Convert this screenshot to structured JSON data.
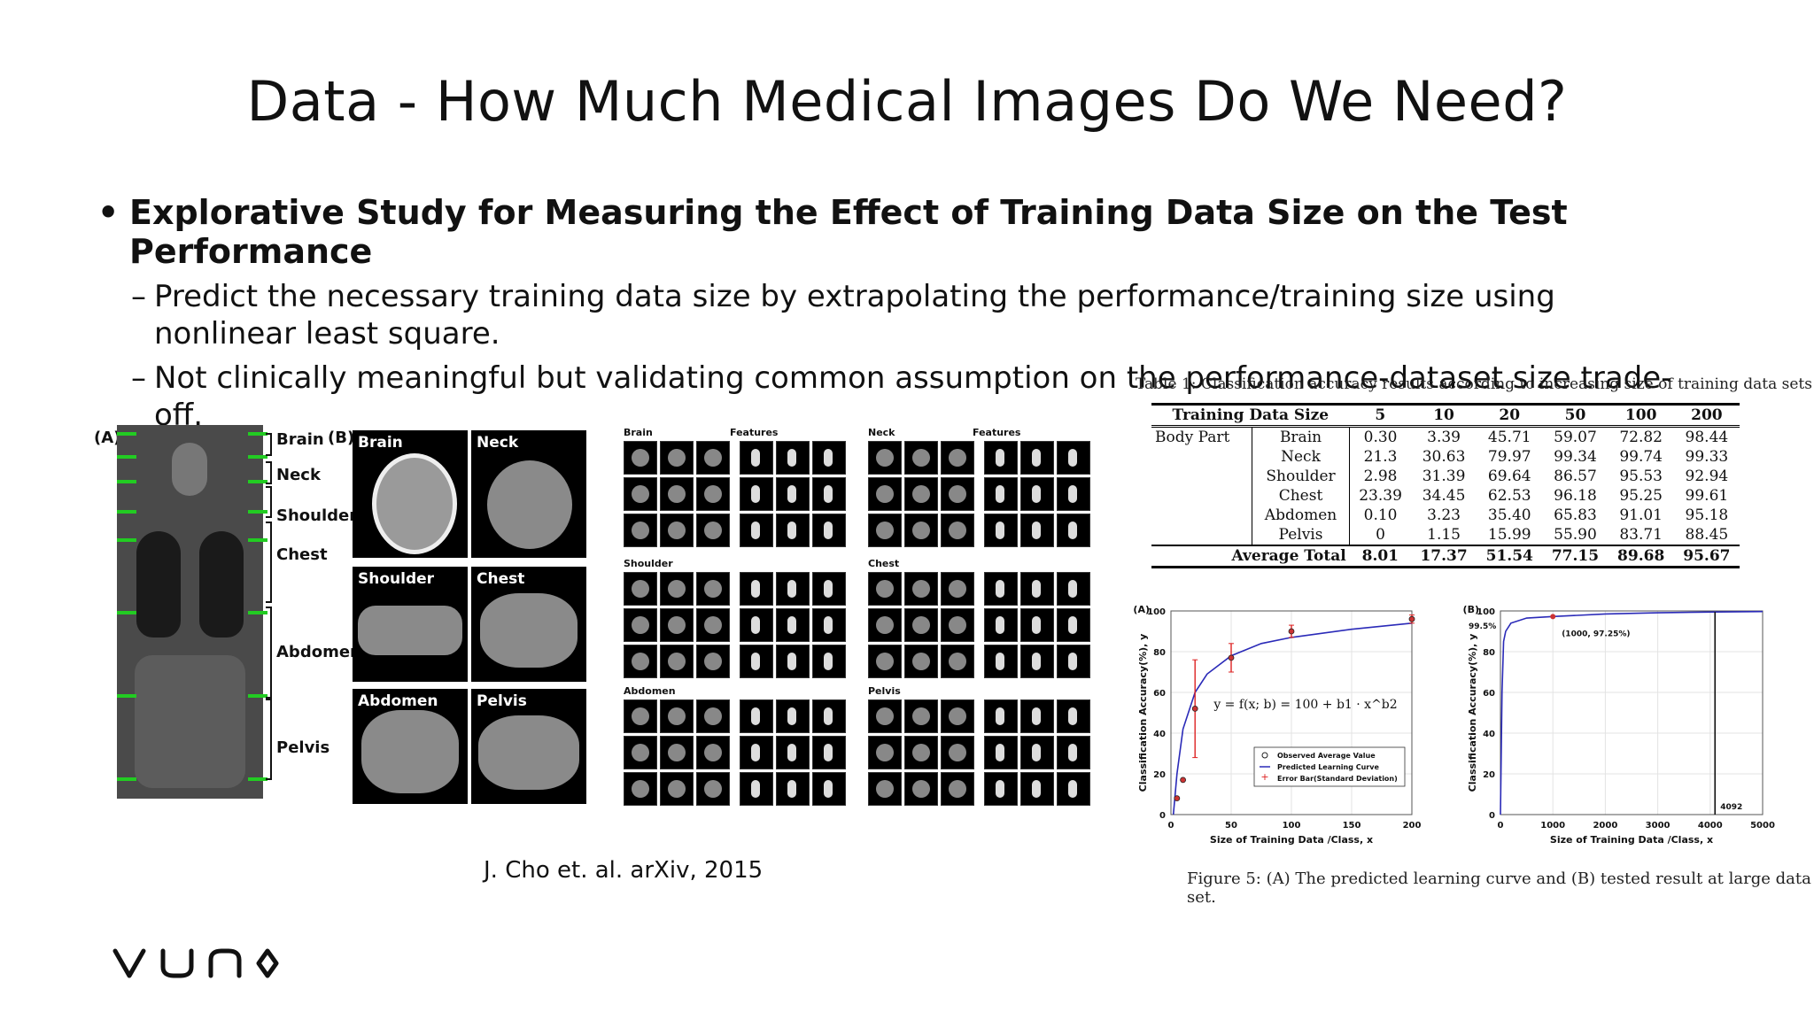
{
  "slide": {
    "title": "Data - How Much Medical Images Do We Need?",
    "bullet": "Explorative Study for Measuring the Effect of Training Data Size on the Test Performance",
    "subbullets": [
      "Predict the necessary training data size by extrapolating the performance/training size using nonlinear least square.",
      "Not clinically meaningful but validating common assumption on the performance-dataset size trade-off."
    ],
    "reference": "J. Cho et. al. arXiv, 2015",
    "logo_text": "vuno"
  },
  "figure_left": {
    "panel_a": "(A)",
    "panel_b": "(B)",
    "region_labels": [
      "Brain",
      "Neck",
      "Shoulder",
      "Chest",
      "Abdomen",
      "Pelvis"
    ],
    "slice_labels": [
      "Brain",
      "Neck",
      "Shoulder",
      "Chest",
      "Abdomen",
      "Pelvis"
    ]
  },
  "figure_features": {
    "groups": [
      {
        "label": "Brain",
        "features": "Features"
      },
      {
        "label": "Neck",
        "features": "Features"
      },
      {
        "label": "Shoulder",
        "features": ""
      },
      {
        "label": "Chest",
        "features": ""
      },
      {
        "label": "Abdomen",
        "features": ""
      },
      {
        "label": "Pelvis",
        "features": ""
      }
    ]
  },
  "table": {
    "caption": "Table 1: Classification accuracy results according to increasing size of training data sets",
    "header": [
      "Training Data Size",
      "5",
      "10",
      "20",
      "50",
      "100",
      "200"
    ],
    "group_label": "Body Part",
    "rows": [
      {
        "part": "Brain",
        "values": [
          "0.30",
          "3.39",
          "45.71",
          "59.07",
          "72.82",
          "98.44"
        ]
      },
      {
        "part": "Neck",
        "values": [
          "21.3",
          "30.63",
          "79.97",
          "99.34",
          "99.74",
          "99.33"
        ]
      },
      {
        "part": "Shoulder",
        "values": [
          "2.98",
          "31.39",
          "69.64",
          "86.57",
          "95.53",
          "92.94"
        ]
      },
      {
        "part": "Chest",
        "values": [
          "23.39",
          "34.45",
          "62.53",
          "96.18",
          "95.25",
          "99.61"
        ]
      },
      {
        "part": "Abdomen",
        "values": [
          "0.10",
          "3.23",
          "35.40",
          "65.83",
          "91.01",
          "95.18"
        ]
      },
      {
        "part": "Pelvis",
        "values": [
          "0",
          "1.15",
          "15.99",
          "55.90",
          "83.71",
          "88.45"
        ]
      }
    ],
    "average": {
      "label": "Average Total",
      "values": [
        "8.01",
        "17.37",
        "51.54",
        "77.15",
        "89.68",
        "95.67"
      ]
    }
  },
  "chart_data": [
    {
      "type": "scatter",
      "panel": "(A)",
      "xlabel": "Size of Training Data /Class, x",
      "ylabel": "Classification Accuracy(%), y",
      "xlim": [
        0,
        200
      ],
      "ylim": [
        0,
        100
      ],
      "xticks": [
        0,
        50,
        100,
        150,
        200
      ],
      "yticks": [
        0,
        20,
        40,
        60,
        80,
        100
      ],
      "equation": "y = f(x; b) = 100 + b1 · x^b2",
      "legend": [
        "Observed Average Value",
        "Predicted Learning Curve",
        "Error Bar(Standard Deviation)"
      ],
      "observed": [
        {
          "x": 5,
          "y": 8
        },
        {
          "x": 10,
          "y": 17
        },
        {
          "x": 20,
          "y": 52
        },
        {
          "x": 50,
          "y": 77
        },
        {
          "x": 100,
          "y": 90
        },
        {
          "x": 200,
          "y": 96
        }
      ],
      "error": [
        {
          "x": 20,
          "lo": 28,
          "hi": 76
        },
        {
          "x": 50,
          "lo": 70,
          "hi": 84
        },
        {
          "x": 100,
          "lo": 87,
          "hi": 93
        },
        {
          "x": 200,
          "lo": 94,
          "hi": 98
        }
      ],
      "curve": [
        {
          "x": 2,
          "y": 0
        },
        {
          "x": 5,
          "y": 20
        },
        {
          "x": 10,
          "y": 42
        },
        {
          "x": 20,
          "y": 60
        },
        {
          "x": 30,
          "y": 69
        },
        {
          "x": 50,
          "y": 78
        },
        {
          "x": 75,
          "y": 84
        },
        {
          "x": 100,
          "y": 87
        },
        {
          "x": 150,
          "y": 91
        },
        {
          "x": 200,
          "y": 94
        }
      ]
    },
    {
      "type": "line",
      "panel": "(B)",
      "xlabel": "Size of Training Data /Class, x",
      "ylabel": "Classification Accuracy(%), y",
      "xlim": [
        0,
        5000
      ],
      "ylim": [
        0,
        100
      ],
      "xticks": [
        0,
        1000,
        2000,
        3000,
        4000,
        5000
      ],
      "yticks": [
        0,
        20,
        40,
        60,
        80,
        100
      ],
      "annotations": [
        "99.5%",
        "(1000, 97.25%)",
        "4092"
      ],
      "curve": [
        {
          "x": 0,
          "y": 0
        },
        {
          "x": 30,
          "y": 60
        },
        {
          "x": 60,
          "y": 85
        },
        {
          "x": 100,
          "y": 90
        },
        {
          "x": 200,
          "y": 94
        },
        {
          "x": 500,
          "y": 96.5
        },
        {
          "x": 1000,
          "y": 97.25
        },
        {
          "x": 2000,
          "y": 98.5
        },
        {
          "x": 3000,
          "y": 99.1
        },
        {
          "x": 4092,
          "y": 99.5
        },
        {
          "x": 5000,
          "y": 99.7
        }
      ],
      "marker": {
        "x": 1000,
        "y": 97.25
      },
      "vline_x": 4092
    }
  ],
  "figure_caption": "Figure 5: (A) The predicted learning curve and (B) tested result at large data set."
}
